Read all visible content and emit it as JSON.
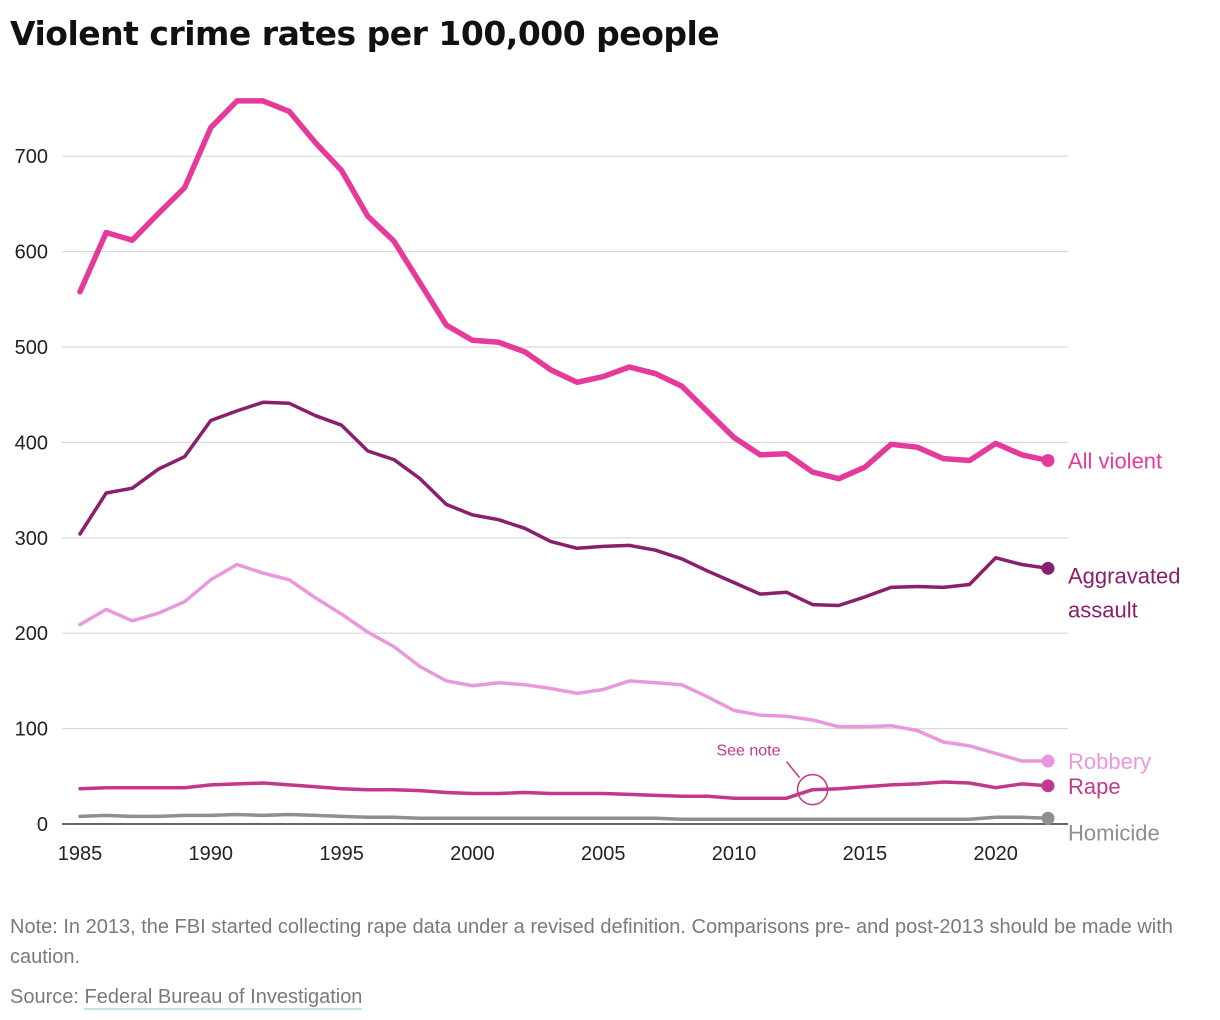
{
  "title": "Violent crime rates per 100,000 people",
  "note": "Note: In 2013, the FBI started collecting rape data under a revised definition. Comparisons pre- and post-2013 should be made with caution.",
  "source": {
    "label": "Source: ",
    "link_text": "Federal Bureau of Investigation"
  },
  "chart_data": {
    "type": "line",
    "title": "Violent crime rates per 100,000 people",
    "xlabel": "",
    "ylabel": "",
    "xlim": [
      1985,
      2022
    ],
    "ylim": [
      0,
      760
    ],
    "grid": true,
    "legend": "direct labels at line ends (right)",
    "x_ticks": [
      1985,
      1990,
      1995,
      2000,
      2005,
      2010,
      2015,
      2020
    ],
    "y_ticks": [
      0,
      100,
      200,
      300,
      400,
      500,
      600,
      700
    ],
    "x": [
      1985,
      1986,
      1987,
      1988,
      1989,
      1990,
      1991,
      1992,
      1993,
      1994,
      1995,
      1996,
      1997,
      1998,
      1999,
      2000,
      2001,
      2002,
      2003,
      2004,
      2005,
      2006,
      2007,
      2008,
      2009,
      2010,
      2011,
      2012,
      2013,
      2014,
      2015,
      2016,
      2017,
      2018,
      2019,
      2020,
      2021,
      2022
    ],
    "series": [
      {
        "name": "All violent",
        "label_lines": [
          "All violent"
        ],
        "color": "#e5399b",
        "width": 5.5,
        "values": [
          558,
          620,
          612,
          640,
          667,
          730,
          758,
          758,
          747,
          714,
          685,
          637,
          611,
          567,
          523,
          507,
          505,
          495,
          476,
          463,
          469,
          479,
          472,
          459,
          432,
          405,
          387,
          388,
          369,
          362,
          374,
          398,
          395,
          383,
          381,
          399,
          387,
          381
        ]
      },
      {
        "name": "Aggravated assault",
        "label_lines": [
          "Aggravated",
          "assault"
        ],
        "color": "#8a1f6e",
        "width": 3.5,
        "values": [
          304,
          347,
          352,
          372,
          385,
          423,
          433,
          442,
          441,
          428,
          418,
          391,
          382,
          362,
          335,
          324,
          319,
          310,
          296,
          289,
          291,
          292,
          287,
          278,
          265,
          253,
          241,
          243,
          230,
          229,
          238,
          248,
          249,
          248,
          251,
          279,
          272,
          268
        ]
      },
      {
        "name": "Robbery",
        "label_lines": [
          "Robbery"
        ],
        "color": "#e998dc",
        "width": 3.5,
        "values": [
          209,
          225,
          213,
          221,
          233,
          256,
          272,
          263,
          256,
          237,
          220,
          201,
          186,
          165,
          150,
          145,
          148,
          146,
          142,
          137,
          141,
          150,
          148,
          146,
          133,
          119,
          114,
          113,
          109,
          102,
          102,
          103,
          98,
          86,
          82,
          74,
          66,
          66
        ]
      },
      {
        "name": "Rape",
        "label_lines": [
          "Rape"
        ],
        "color": "#c2388a",
        "width": 3.5,
        "values": [
          37,
          38,
          38,
          38,
          38,
          41,
          42,
          43,
          41,
          39,
          37,
          36,
          36,
          35,
          33,
          32,
          32,
          33,
          32,
          32,
          32,
          31,
          30,
          29,
          29,
          27,
          27,
          27,
          36,
          37,
          39,
          41,
          42,
          44,
          43,
          38,
          42,
          40
        ]
      },
      {
        "name": "Homicide",
        "label_lines": [
          "Homicide"
        ],
        "color": "#8f8f8f",
        "width": 3.5,
        "values": [
          8,
          9,
          8,
          8,
          9,
          9,
          10,
          9,
          10,
          9,
          8,
          7,
          7,
          6,
          6,
          6,
          6,
          6,
          6,
          6,
          6,
          6,
          6,
          5,
          5,
          5,
          5,
          5,
          5,
          5,
          5,
          5,
          5,
          5,
          5,
          7,
          7,
          6
        ]
      }
    ],
    "annotation": {
      "text": "See note",
      "x": 2013,
      "y": 36,
      "color": "#c2388a"
    }
  }
}
